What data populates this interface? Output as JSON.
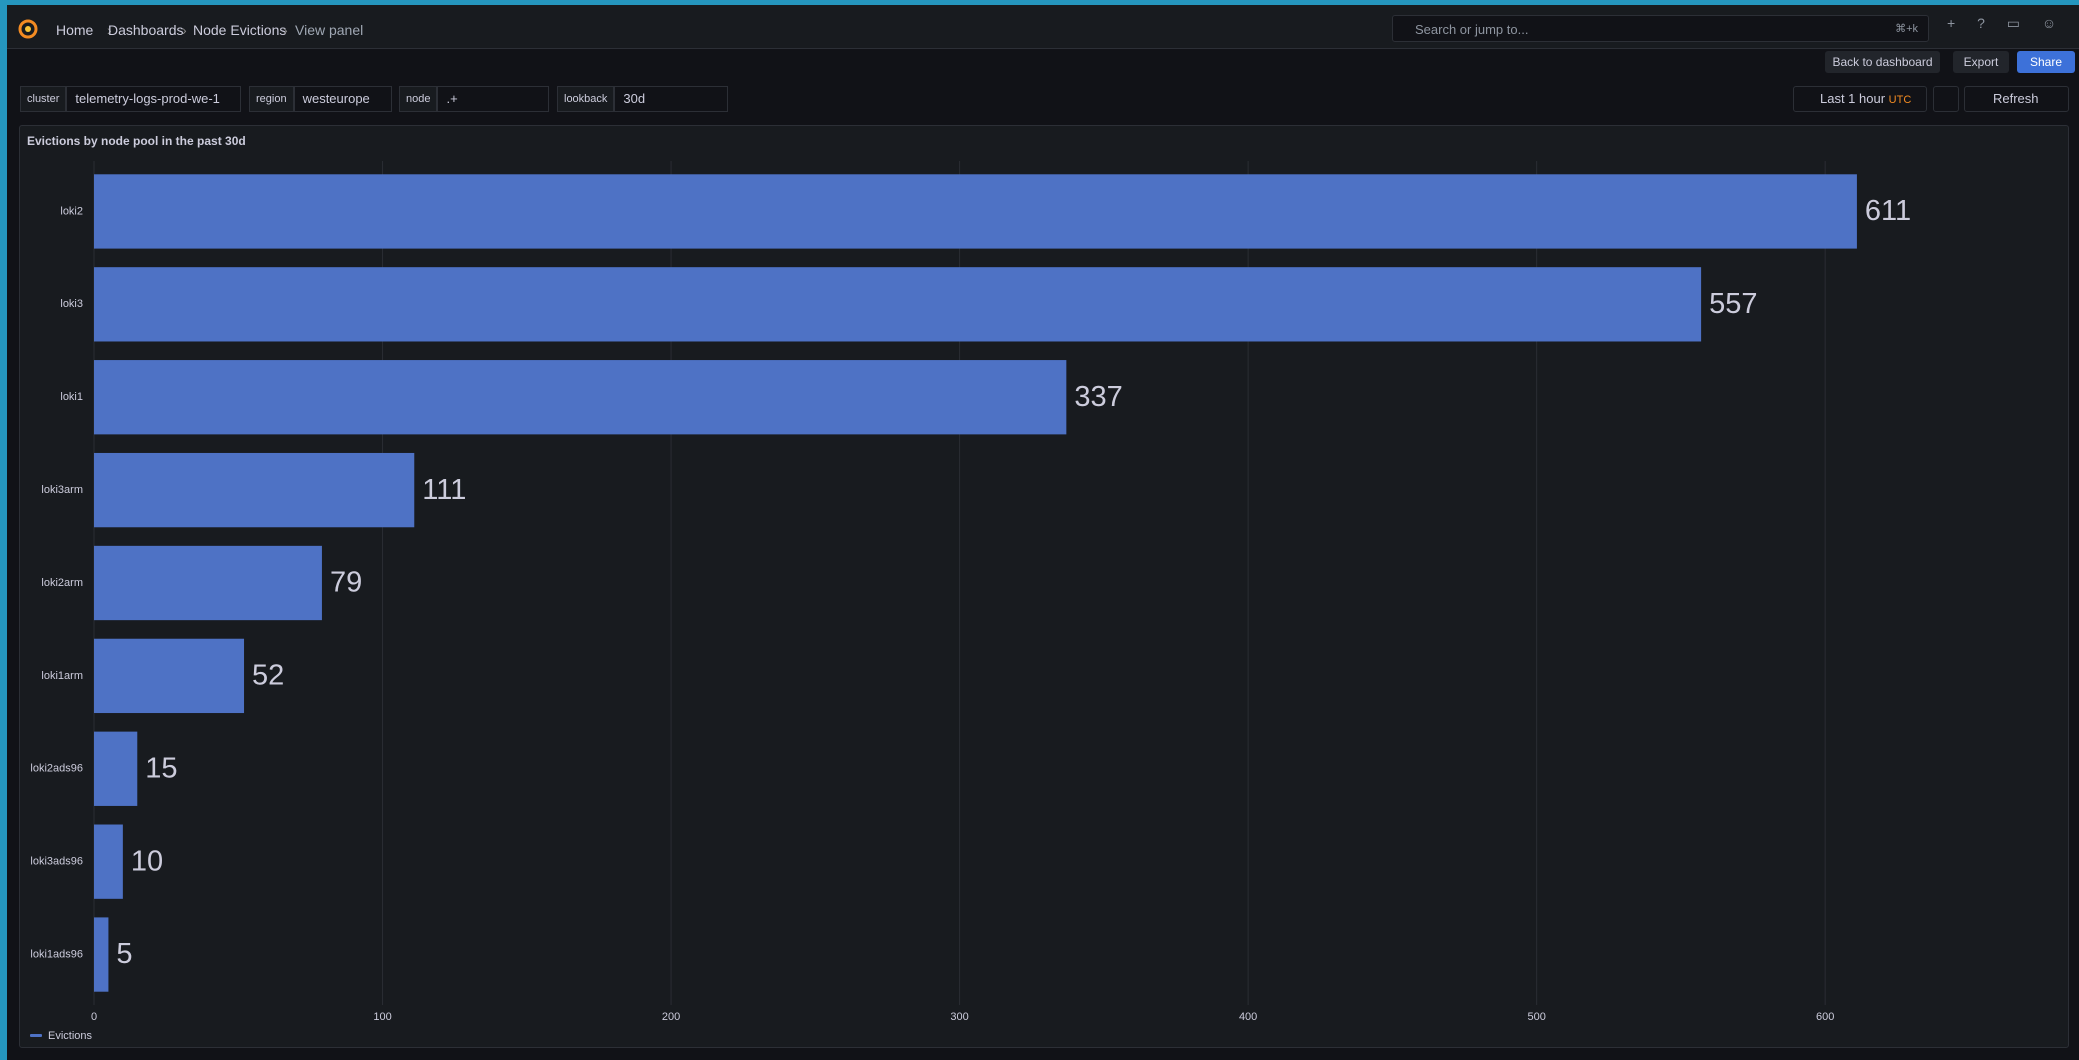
{
  "breadcrumbs": [
    "Home",
    "Dashboards",
    "Node Evictions",
    "View panel"
  ],
  "search": {
    "placeholder": "Search or jump to...",
    "shortcut": "⌘+k"
  },
  "toolbar": {
    "back": "Back to dashboard",
    "export": "Export",
    "share": "Share"
  },
  "variables": [
    {
      "label": "cluster",
      "value": "telemetry-logs-prod-we-1"
    },
    {
      "label": "region",
      "value": "westeurope"
    },
    {
      "label": "node",
      "value": ".+"
    },
    {
      "label": "lookback",
      "value": "30d"
    }
  ],
  "time": {
    "range": "Last 1 hour",
    "tz": "UTC",
    "refresh": "Refresh"
  },
  "chart_data": {
    "type": "barh",
    "title": "Evictions by node pool in the past 30d",
    "categories": [
      "loki2",
      "loki3",
      "loki1",
      "loki3arm",
      "loki2arm",
      "loki1arm",
      "loki2ads96",
      "loki3ads96",
      "loki1ads96"
    ],
    "series": [
      {
        "name": "Evictions",
        "color": "#4e72c5",
        "values": [
          611,
          557,
          337,
          111,
          79,
          52,
          15,
          10,
          5
        ]
      }
    ],
    "xlim": [
      0,
      680
    ],
    "xticks": [
      0,
      100,
      200,
      300,
      400,
      500,
      600
    ],
    "grid": true
  }
}
